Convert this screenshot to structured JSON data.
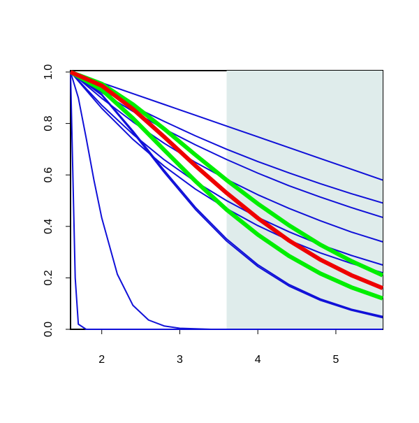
{
  "chart_data": {
    "type": "line",
    "xlim": [
      1.6,
      5.6
    ],
    "ylim": [
      0,
      1
    ],
    "xticks": [
      2,
      3,
      4,
      5
    ],
    "yticks": [
      {
        "value": 0,
        "label": "0.0"
      },
      {
        "value": 0.2,
        "label": "0.2"
      },
      {
        "value": 0.4,
        "label": "0.4"
      },
      {
        "value": 0.6,
        "label": "0.6"
      },
      {
        "value": 0.8,
        "label": "0.8"
      },
      {
        "value": 1,
        "label": "1.0"
      }
    ],
    "shaded_xrange": [
      3.6,
      5.6
    ],
    "shade_color": "#dfeceb",
    "series": [
      {
        "color": "#1010d8",
        "line_width": 2,
        "x": [
          1.6,
          2.0,
          2.4,
          2.8,
          3.2,
          3.6,
          4.0,
          4.4,
          4.8,
          5.2,
          5.6
        ],
        "values": [
          1,
          0.958,
          0.916,
          0.874,
          0.832,
          0.79,
          0.748,
          0.706,
          0.664,
          0.622,
          0.58
        ]
      },
      {
        "color": "#1010d8",
        "line_width": 2,
        "x": [
          1.6,
          2.0,
          2.4,
          2.8,
          3.2,
          3.6,
          4.0,
          4.4,
          4.8,
          5.2,
          5.6
        ],
        "values": [
          1,
          0.931,
          0.867,
          0.808,
          0.752,
          0.7,
          0.652,
          0.608,
          0.566,
          0.527,
          0.491
        ]
      },
      {
        "color": "#1010d8",
        "line_width": 2,
        "x": [
          1.6,
          2.0,
          2.4,
          2.8,
          3.2,
          3.6,
          4.0,
          4.4,
          4.8,
          5.2,
          5.6
        ],
        "values": [
          1,
          0.92,
          0.847,
          0.779,
          0.717,
          0.66,
          0.607,
          0.558,
          0.514,
          0.473,
          0.435
        ]
      },
      {
        "color": "#1010d8",
        "line_width": 2,
        "x": [
          1.6,
          2.0,
          2.4,
          2.8,
          3.2,
          3.6,
          4.0,
          4.4,
          4.8,
          5.2,
          5.6
        ],
        "values": [
          1,
          0.898,
          0.806,
          0.723,
          0.649,
          0.583,
          0.523,
          0.47,
          0.422,
          0.378,
          0.34
        ]
      },
      {
        "color": "#1010d8",
        "line_width": 2,
        "x": [
          1.6,
          2.0,
          2.4,
          2.8,
          3.2,
          3.6,
          4.0,
          4.4,
          4.8,
          5.2,
          5.6
        ],
        "values": [
          1,
          0.871,
          0.758,
          0.659,
          0.574,
          0.5,
          0.435,
          0.379,
          0.329,
          0.287,
          0.25
        ]
      },
      {
        "color": "#1010d8",
        "line_width": 2,
        "x": [
          1.6,
          2.0,
          2.4,
          2.8,
          3.2,
          3.6,
          4.0,
          4.4,
          4.8,
          5.2,
          5.6
        ],
        "values": [
          1,
          0.859,
          0.738,
          0.634,
          0.545,
          0.469,
          0.403,
          0.346,
          0.297,
          0.256,
          0.22
        ]
      },
      {
        "color": "#1010d8",
        "line_width": 2,
        "x": [
          1.6,
          2.0,
          2.4,
          2.8,
          3.2,
          3.6,
          4.0,
          4.4,
          4.8,
          5.2,
          5.6
        ],
        "values": [
          1,
          0.913,
          0.771,
          0.618,
          0.474,
          0.351,
          0.251,
          0.174,
          0.118,
          0.078,
          0.05
        ]
      },
      {
        "color": "#1010d8",
        "line_width": 2,
        "x": [
          1.6,
          2.0,
          2.4,
          2.8,
          3.2,
          3.6,
          4.0,
          4.4,
          4.8,
          5.2,
          5.6
        ],
        "values": [
          1,
          0.91,
          0.765,
          0.61,
          0.466,
          0.343,
          0.244,
          0.168,
          0.113,
          0.074,
          0.045
        ]
      },
      {
        "color": "#1010d8",
        "line_width": 2,
        "x": [
          1.6,
          1.7,
          1.8,
          1.9,
          2.0,
          2.2,
          2.4,
          2.6,
          2.8,
          3.0,
          3.4,
          4.0,
          5.6
        ],
        "values": [
          1,
          0.9,
          0.744,
          0.58,
          0.433,
          0.214,
          0.093,
          0.036,
          0.013,
          0.004,
          0.0,
          0.0,
          0.0
        ]
      },
      {
        "color": "#1010d8",
        "line_width": 2,
        "x": [
          1.6,
          1.63,
          1.66,
          1.7,
          1.8,
          5.6
        ],
        "values": [
          1,
          0.6,
          0.2,
          0.02,
          0,
          0
        ]
      },
      {
        "color": "#00ee00",
        "line_width": 6,
        "x": [
          1.6,
          2.0,
          2.4,
          2.8,
          3.2,
          3.6,
          4.0,
          4.4,
          4.8,
          5.2,
          5.6
        ],
        "values": [
          1,
          0.954,
          0.874,
          0.779,
          0.678,
          0.58,
          0.488,
          0.404,
          0.329,
          0.265,
          0.21
        ]
      },
      {
        "color": "#00ee00",
        "line_width": 6,
        "x": [
          1.6,
          2.0,
          2.4,
          2.8,
          3.2,
          3.6,
          4.0,
          4.4,
          4.8,
          5.2,
          5.6
        ],
        "values": [
          1,
          0.931,
          0.82,
          0.697,
          0.576,
          0.465,
          0.368,
          0.285,
          0.217,
          0.163,
          0.12
        ]
      },
      {
        "color": "#ee0000",
        "line_width": 6,
        "x": [
          1.6,
          2.0,
          2.4,
          2.8,
          3.2,
          3.6,
          4.0,
          4.4,
          4.8,
          5.2,
          5.6
        ],
        "values": [
          1,
          0.947,
          0.856,
          0.748,
          0.636,
          0.53,
          0.432,
          0.345,
          0.271,
          0.21,
          0.16
        ]
      }
    ]
  }
}
